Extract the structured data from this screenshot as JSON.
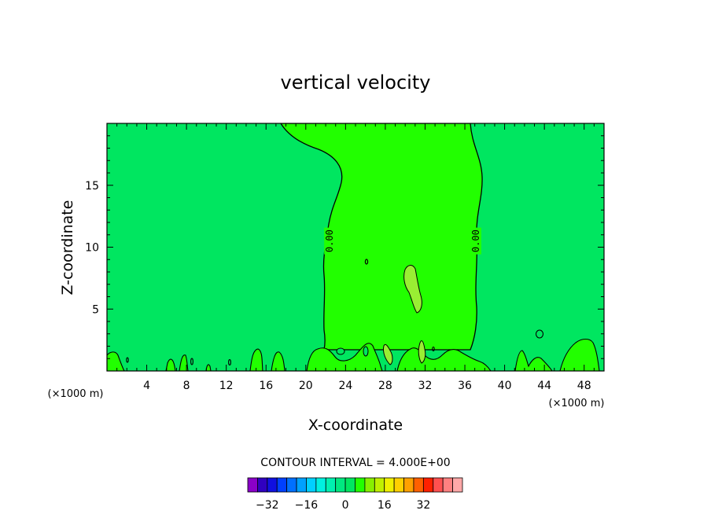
{
  "chart_data": {
    "type": "heatmap",
    "title": "vertical velocity",
    "xlabel": "X-coordinate",
    "ylabel": "Z-coordinate",
    "x_unit": "(×1000 m)",
    "x_unit_right": "(×1000 m)",
    "xlim": [
      0,
      50
    ],
    "ylim": [
      0,
      20
    ],
    "xticks": [
      4,
      8,
      12,
      16,
      20,
      24,
      28,
      32,
      36,
      40,
      44,
      48
    ],
    "yticks": [
      5,
      10,
      15
    ],
    "contour_labels": [
      {
        "text": "0.00",
        "x": 22.4,
        "z": 10.5
      },
      {
        "text": "0.00",
        "x": 37.1,
        "z": 10.5
      }
    ],
    "regions": [
      {
        "label": "0",
        "color": "#22ff00",
        "description_level": 0
      },
      {
        "label": "-4",
        "color": "#00e660",
        "description_level": -4
      },
      {
        "label": "4",
        "color": "#99ee33",
        "description_level": 4
      }
    ],
    "contour_interval_text": "CONTOUR INTERVAL = 4.000E+00",
    "colorbar": {
      "colors": [
        "#8a00c8",
        "#3000c0",
        "#1010e0",
        "#0040ff",
        "#0070ff",
        "#00a0ff",
        "#00d0ff",
        "#00f0e0",
        "#00f0b0",
        "#00e880",
        "#00e660",
        "#22ff00",
        "#88f000",
        "#c0f000",
        "#f0f000",
        "#ffd000",
        "#ffa000",
        "#ff6000",
        "#ff2000",
        "#ff5050",
        "#ff8080",
        "#ffa8a8"
      ],
      "tick_labels": [
        "−32",
        "−16",
        "0",
        "16",
        "32"
      ],
      "tick_values": [
        -32,
        -16,
        0,
        16,
        32
      ],
      "range": [
        -40,
        48
      ]
    }
  }
}
